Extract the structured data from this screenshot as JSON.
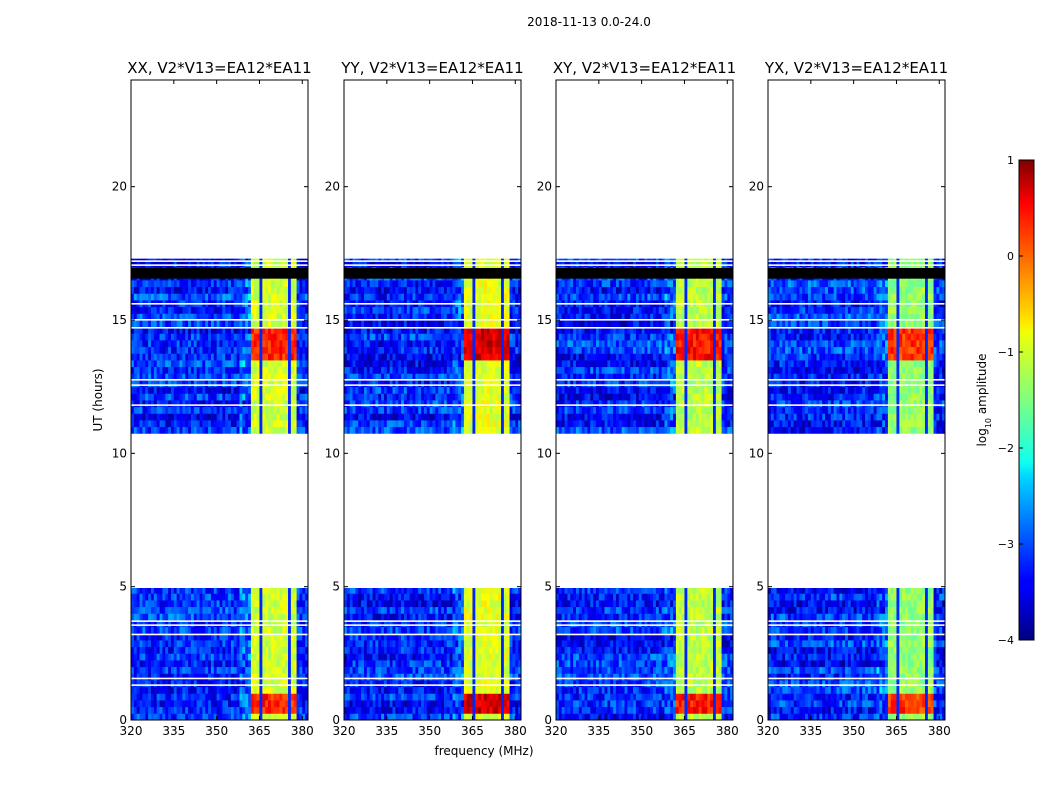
{
  "chart_data": {
    "type": "heatmap",
    "suptitle": "2018-11-13 0.0-24.0",
    "xlabel": "frequency (MHz)",
    "ylabel": "UT (hours)",
    "xlim": [
      320,
      382
    ],
    "ylim": [
      0,
      24
    ],
    "xticks": [
      320,
      335,
      350,
      365,
      380
    ],
    "yticks": [
      0,
      5,
      10,
      15,
      20
    ],
    "colorbar": {
      "label": "log10 amplitude",
      "label_main": "log",
      "label_sub": "10",
      "label_rest": " amplitude",
      "range": [
        -4,
        1
      ],
      "ticks": [
        1,
        0,
        -1,
        -2,
        -3,
        -4
      ],
      "tick_labels": [
        "1",
        "0",
        "−1",
        "−2",
        "−3",
        "−4"
      ],
      "colormap": "jet"
    },
    "panels": [
      {
        "title": "XX, V2*V13=EA12*EA11",
        "band_level": -1.1,
        "peak_level": 0.2
      },
      {
        "title": "YY, V2*V13=EA12*EA11",
        "band_level": -1.0,
        "peak_level": 0.6
      },
      {
        "title": "XY, V2*V13=EA12*EA11",
        "band_level": -1.2,
        "peak_level": 0.3
      },
      {
        "title": "YX, V2*V13=EA12*EA11",
        "band_level": -1.4,
        "peak_level": 0.1
      }
    ],
    "data_segments_hours": [
      [
        0.0,
        4.95
      ],
      [
        10.75,
        17.3
      ]
    ],
    "flagged_blocks_hours": [
      [
        16.55,
        16.95
      ]
    ],
    "gap_lines_hours": [
      1.3,
      1.55,
      3.2,
      3.55,
      3.7,
      11.8,
      12.55,
      12.75,
      14.7,
      15.0,
      15.6,
      17.05,
      17.2
    ],
    "bright_band_mhz": [
      362,
      378
    ],
    "peak_hours": [
      [
        0.1,
        0.95
      ],
      [
        13.4,
        14.6
      ]
    ],
    "background_level": -3.2
  }
}
